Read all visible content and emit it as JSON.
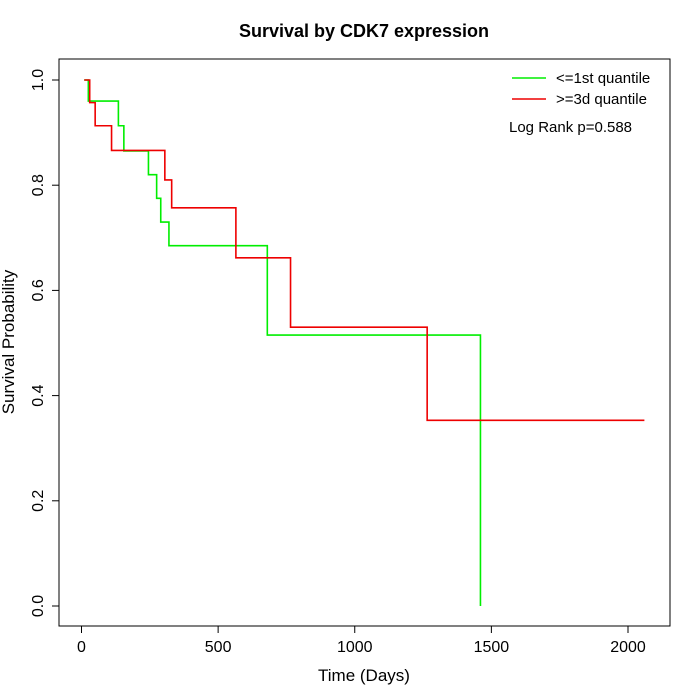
{
  "chart_data": {
    "type": "line",
    "subtype": "kaplan-meier step",
    "title": "Survival by CDK7 expression",
    "xlabel": "Time (Days)",
    "ylabel": "Survival Probability",
    "xlim": [
      0,
      2070
    ],
    "ylim": [
      0,
      1
    ],
    "x_ticks": [
      0,
      500,
      1000,
      1500,
      2000
    ],
    "x_tick_labels": [
      "0",
      "500",
      "1000",
      "1500",
      "2000"
    ],
    "y_ticks": [
      0,
      0.2,
      0.4,
      0.6,
      0.8,
      1.0
    ],
    "y_tick_labels": [
      "0.0",
      "0.2",
      "0.4",
      "0.6",
      "0.8",
      "1.0"
    ],
    "grid": false,
    "legend_position": "top-right",
    "annotation": "Log Rank p=0.588",
    "series": [
      {
        "name": "<=1st quantile",
        "color": "#00ee00",
        "x": [
          10,
          25,
          105,
          135,
          155,
          245,
          275,
          290,
          320,
          680,
          1455,
          1460
        ],
        "y": [
          1.0,
          0.96,
          0.96,
          0.913,
          0.865,
          0.82,
          0.775,
          0.73,
          0.685,
          0.515,
          0.515,
          0.0
        ]
      },
      {
        "name": ">=3d quantile",
        "color": "#ee0000",
        "x": [
          10,
          30,
          50,
          110,
          305,
          330,
          565,
          765,
          1265,
          2060
        ],
        "y": [
          1.0,
          0.957,
          0.913,
          0.866,
          0.81,
          0.757,
          0.662,
          0.53,
          0.353,
          0.353
        ]
      }
    ]
  }
}
